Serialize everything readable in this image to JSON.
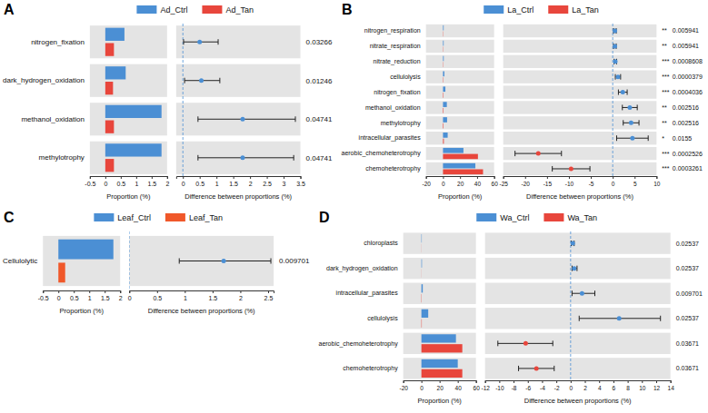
{
  "chart_data": [
    {
      "type": "bar",
      "orientation": "horizontal",
      "title": "A",
      "legend": "top",
      "categories": [
        "nitrogen_fixation",
        "dark_hydrogen_oxidation",
        "methanol_oxidation",
        "methylotrophy"
      ],
      "series": [
        {
          "name": "Ad_Ctrl",
          "color": "#4b8fd4",
          "values": [
            0.62,
            0.66,
            1.82,
            1.82
          ]
        },
        {
          "name": "Ad_Tan",
          "color": "#e8463c",
          "values": [
            0.28,
            0.25,
            0.28,
            0.28
          ]
        }
      ],
      "xlim": [
        -0.5,
        2
      ],
      "xticks": [
        -0.5,
        0,
        0.5,
        1,
        1.5,
        2
      ],
      "xlabel": "Proportion (%)",
      "difference": {
        "values": [
          0.5,
          0.55,
          1.78,
          1.78
        ],
        "ci_low": [
          0.02,
          0.05,
          0.45,
          0.45
        ],
        "ci_high": [
          1.05,
          1.1,
          3.35,
          3.3
        ],
        "xlim": [
          -0.2,
          3.5
        ],
        "xticks": [
          0,
          0.5,
          1,
          1.5,
          2,
          2.5,
          3,
          3.5
        ],
        "xlabel": "Difference between proportions (%)"
      },
      "p_values": [
        0.03266,
        0.01246,
        0.04741,
        0.04741
      ]
    },
    {
      "type": "bar",
      "orientation": "horizontal",
      "title": "B",
      "legend": "top",
      "categories": [
        "nitrogen_respiration",
        "nitrate_respiration",
        "nitrate_reduction",
        "cellulolysis",
        "nitrogen_fixation",
        "methanol_oxidation",
        "methylotrophy",
        "intracellular_parasites",
        "aerobic_chemoheterotrophy",
        "chemoheterotrophy"
      ],
      "series": [
        {
          "name": "La_Ctrl",
          "color": "#4b8fd4",
          "values": [
            0.8,
            0.8,
            0.9,
            1.6,
            2.8,
            4.5,
            4.8,
            5.5,
            24,
            38
          ]
        },
        {
          "name": "La_Tan",
          "color": "#e8463c",
          "values": [
            0.3,
            0.3,
            0.3,
            0.4,
            0.5,
            0.6,
            0.6,
            1,
            41,
            47
          ]
        }
      ],
      "xlim": [
        -20,
        60
      ],
      "xticks": [
        -20,
        0,
        20,
        40,
        60
      ],
      "xlabel": "Proportion (%)",
      "difference": {
        "values": [
          0.5,
          0.5,
          0.6,
          1.2,
          2.3,
          3.9,
          4.2,
          4.5,
          -17,
          -9.5
        ],
        "ci_low": [
          0.2,
          0.2,
          0.3,
          0.6,
          1.3,
          2.2,
          2.4,
          0.9,
          -22.3,
          -13.8
        ],
        "ci_high": [
          0.8,
          0.8,
          0.9,
          1.8,
          3.3,
          5.6,
          6,
          8.1,
          -11.7,
          -5.2
        ],
        "xlim": [
          -25,
          10
        ],
        "xticks": [
          -25,
          -20,
          -15,
          -10,
          -5,
          0,
          5,
          10
        ],
        "xlabel": "Difference between proportions (%)"
      },
      "significance": [
        "**",
        "**",
        "***",
        "***",
        "***",
        "**",
        "**",
        "*",
        "***",
        "***"
      ],
      "p_values": [
        0.005941,
        0.005941,
        0.0008608,
        3.79e-05,
        0.0004036,
        0.002516,
        0.002516,
        0.0155,
        0.0002526,
        0.0003261
      ]
    },
    {
      "type": "bar",
      "orientation": "horizontal",
      "title": "C",
      "legend": "top",
      "categories": [
        "Cellulolytic"
      ],
      "series": [
        {
          "name": "Leaf_Ctrl",
          "color": "#4b8fd4",
          "values": [
            1.78
          ]
        },
        {
          "name": "Leaf_Tan",
          "color": "#f0582a",
          "values": [
            0.22
          ]
        }
      ],
      "xlim": [
        -0.5,
        2
      ],
      "xticks": [
        -0.5,
        0,
        0.5,
        1,
        1.5,
        2
      ],
      "xlabel": "Proportion (%)",
      "difference": {
        "values": [
          1.7
        ],
        "ci_low": [
          0.9
        ],
        "ci_high": [
          2.55
        ],
        "xlim": [
          0,
          2.6
        ],
        "xticks": [
          0,
          0.5,
          1,
          1.5,
          2,
          2.5
        ],
        "xlabel": "Difference between proportions (%)"
      },
      "p_values": [
        0.009701
      ]
    },
    {
      "type": "bar",
      "orientation": "horizontal",
      "title": "D",
      "legend": "top",
      "categories": [
        "chloroplasts",
        "dark_hydrogen_oxidation",
        "intracellular_parasites",
        "cellulolysis",
        "aerobic_chemoheterotrophy",
        "chemoheterotrophy"
      ],
      "series": [
        {
          "name": "Wa_Ctrl",
          "color": "#4b8fd4",
          "values": [
            0.4,
            0.6,
            1.5,
            7.5,
            38,
            40
          ]
        },
        {
          "name": "Wa_Tan",
          "color": "#e8463c",
          "values": [
            0.1,
            0.1,
            0.3,
            0.4,
            45,
            45
          ]
        }
      ],
      "xlim": [
        -20,
        60
      ],
      "xticks": [
        -20,
        0,
        20,
        40,
        60
      ],
      "xlabel": "Proportion (%)",
      "difference": {
        "values": [
          0.3,
          0.5,
          1.6,
          6.8,
          -6.3,
          -4.8
        ],
        "ci_low": [
          0.1,
          0.2,
          0.2,
          1.2,
          -10.2,
          -7.3
        ],
        "ci_high": [
          0.5,
          0.9,
          3.4,
          12.6,
          -2.5,
          -2.3
        ],
        "xlim": [
          -12,
          14
        ],
        "xticks": [
          -12,
          -10,
          -8,
          -6,
          -4,
          -2,
          0,
          2,
          4,
          6,
          8,
          10,
          12,
          14
        ],
        "xlabel": "Difference between proportions (%)"
      },
      "p_values": [
        0.02537,
        0.02537,
        0.009701,
        0.02537,
        0.03671,
        0.03671
      ]
    }
  ]
}
